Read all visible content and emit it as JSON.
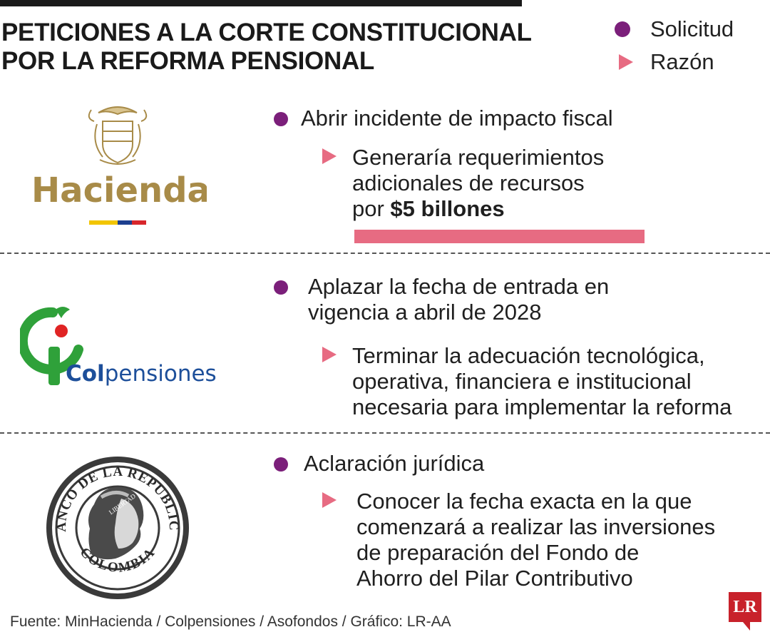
{
  "title": {
    "line1": "PETICIONES A LA CORTE CONSTITUCIONAL",
    "line2": "POR LA REFORMA PENSIONAL"
  },
  "legend": {
    "solicitud": "Solicitud",
    "razon": "Razón"
  },
  "colors": {
    "purple": "#7b1f7a",
    "pink": "#e76b82",
    "gold": "#a88b48",
    "green": "#2fa13a",
    "blue": "#1d4f9a",
    "red": "#e02424",
    "lr_red": "#c8222b"
  },
  "entities": [
    {
      "logo_icon": "hacienda-logo",
      "logo_text": "Hacienda",
      "solicitud": "Abrir incidente de impacto fiscal",
      "razon_lines": [
        "Generaría requerimientos",
        "adicionales de recursos",
        "por "
      ],
      "razon_bold": "$5 billones"
    },
    {
      "logo_icon": "colpensiones-logo",
      "logo_text_bold": "Col",
      "logo_text_rest": "pensiones",
      "solicitud_lines": [
        "Aplazar la fecha de entrada en",
        "vigencia a abril de 2028"
      ],
      "razon_lines": [
        "Terminar la adecuación tecnológica,",
        "operativa, financiera e institucional",
        "necesaria para implementar la reforma"
      ]
    },
    {
      "logo_icon": "banco-republica-seal",
      "seal_top_text": "BANCO DE LA REPUBLICA",
      "seal_bottom_text": "COLOMBIA",
      "seal_ribbon_text": "LIBERTAD",
      "solicitud": "Aclaración jurídica",
      "razon_lines": [
        "Conocer la fecha exacta en la que",
        "comenzará a realizar las inversiones",
        "de preparación del Fondo de",
        "Ahorro del Pilar Contributivo"
      ]
    }
  ],
  "footer": {
    "source": "Fuente: MinHacienda / Colpensiones / Asofondos / Gráfico: LR-AA",
    "badge": "LR"
  }
}
